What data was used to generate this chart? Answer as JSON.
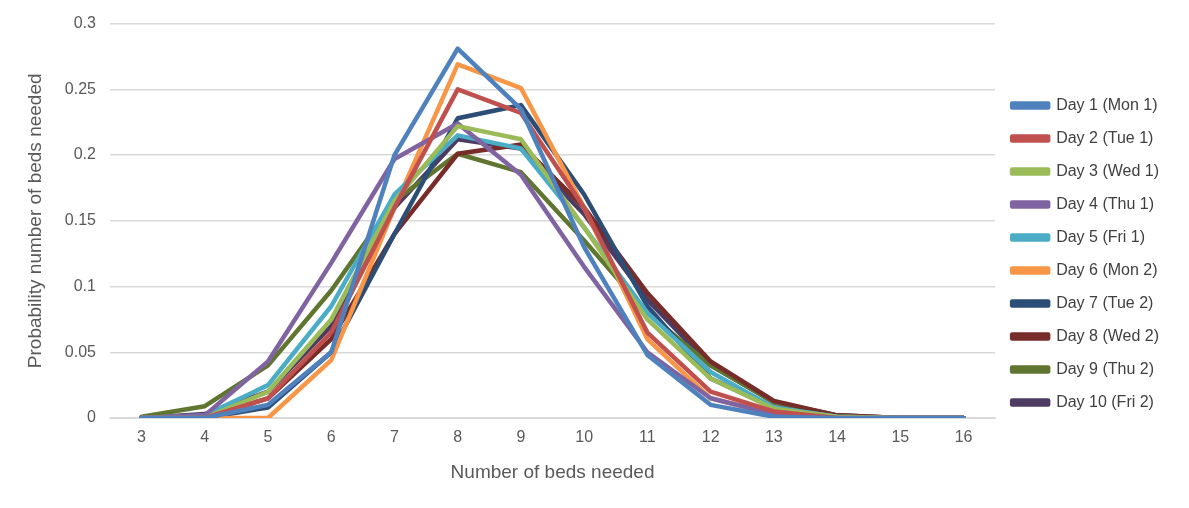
{
  "chart_data": {
    "type": "line",
    "xlabel": "Number of beds needed",
    "ylabel": "Probability number of beds needed",
    "categories": [
      "3",
      "4",
      "5",
      "6",
      "7",
      "8",
      "9",
      "10",
      "11",
      "12",
      "13",
      "14",
      "15",
      "16"
    ],
    "ylim": [
      0,
      0.3
    ],
    "yticks": [
      0,
      0.05,
      0.1,
      0.15,
      0.2,
      0.25,
      0.3
    ],
    "grid": "y",
    "legend": "right",
    "marker": "none",
    "line_style": "solid",
    "series": [
      {
        "name": "Day 1 (Mon 1)",
        "color": "#4f81bd",
        "values": [
          0,
          0,
          0.01,
          0.05,
          0.2,
          0.281,
          0.235,
          0.13,
          0.048,
          0.01,
          0.001,
          0,
          0,
          0
        ]
      },
      {
        "name": "Day 2 (Tue 1)",
        "color": "#c0504d",
        "values": [
          0,
          0,
          0.015,
          0.065,
          0.16,
          0.25,
          0.232,
          0.16,
          0.065,
          0.02,
          0.005,
          0,
          0,
          0
        ]
      },
      {
        "name": "Day 3 (Wed 1)",
        "color": "#9bbb59",
        "values": [
          0,
          0,
          0.02,
          0.075,
          0.165,
          0.222,
          0.212,
          0.145,
          0.075,
          0.03,
          0.007,
          0.001,
          0,
          0
        ]
      },
      {
        "name": "Day 4 (Thu 1)",
        "color": "#8064a2",
        "values": [
          0,
          0.002,
          0.043,
          0.118,
          0.197,
          0.224,
          0.185,
          0.115,
          0.05,
          0.015,
          0.003,
          0,
          0,
          0
        ]
      },
      {
        "name": "Day 5 (Fri 1)",
        "color": "#4bacc6",
        "values": [
          0,
          0.002,
          0.025,
          0.085,
          0.17,
          0.215,
          0.205,
          0.145,
          0.08,
          0.035,
          0.008,
          0.001,
          0,
          0
        ]
      },
      {
        "name": "Day 6 (Mon 2)",
        "color": "#f79646",
        "values": [
          0,
          0,
          0,
          0.044,
          0.16,
          0.269,
          0.251,
          0.16,
          0.06,
          0.015,
          0.003,
          null,
          null,
          null
        ]
      },
      {
        "name": "Day 7 (Tue 2)",
        "color": "#2c4d75",
        "values": [
          0,
          0,
          0.008,
          0.05,
          0.14,
          0.228,
          0.238,
          0.17,
          0.085,
          0.03,
          0.008,
          0.001,
          0,
          0
        ]
      },
      {
        "name": "Day 8 (Wed 2)",
        "color": "#772c2a",
        "values": [
          0,
          0,
          0.015,
          0.06,
          0.14,
          0.201,
          0.208,
          0.16,
          0.095,
          0.043,
          0.013,
          0.002,
          0,
          0
        ]
      },
      {
        "name": "Day 9 (Thu 2)",
        "color": "#5f7530",
        "values": [
          0.001,
          0.009,
          0.04,
          0.097,
          0.165,
          0.201,
          0.187,
          0.135,
          0.08,
          0.04,
          0.012,
          0.002,
          0,
          0
        ]
      },
      {
        "name": "Day 10 (Fri 2)",
        "color": "#4d3b62",
        "values": [
          0,
          0.003,
          0.02,
          0.07,
          0.16,
          0.212,
          0.205,
          0.155,
          0.09,
          0.04,
          0.012,
          0.002,
          0,
          0
        ]
      }
    ]
  }
}
